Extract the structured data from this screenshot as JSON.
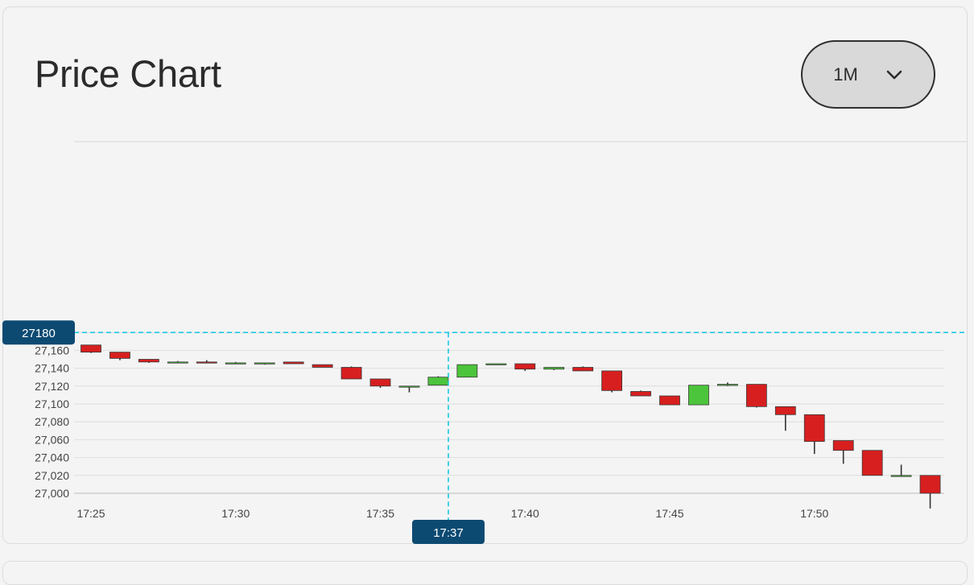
{
  "header": {
    "title": "Price Chart",
    "timeframe": "1M"
  },
  "crosshair": {
    "price_label": "27180",
    "time_label": "17:37",
    "price": 27180,
    "time": "17:37"
  },
  "colors": {
    "up": "#4cc43b",
    "down": "#d71f1f",
    "crosshair": "#1cc7e6",
    "label_bg": "#0d4a72",
    "grid": "#dddddd"
  },
  "chart_data": {
    "type": "candlestick",
    "y_ticks": [
      "27,000",
      "27,020",
      "27,040",
      "27,060",
      "27,080",
      "27,100",
      "27,120",
      "27,140",
      "27,160",
      "27,180"
    ],
    "x_ticks": [
      "17:25",
      "17:30",
      "17:35",
      "17:40",
      "17:45",
      "17:50"
    ],
    "ylim": [
      27000,
      27180
    ],
    "grid": true,
    "candles": [
      {
        "time": "17:25",
        "open": 27166,
        "high": 27166,
        "low": 27157,
        "close": 27158
      },
      {
        "time": "17:26",
        "open": 27158,
        "high": 27158,
        "low": 27149,
        "close": 27151
      },
      {
        "time": "17:27",
        "open": 27150,
        "high": 27150,
        "low": 27146,
        "close": 27147
      },
      {
        "time": "17:28",
        "open": 27147,
        "high": 27148,
        "low": 27146,
        "close": 27147
      },
      {
        "time": "17:29",
        "open": 27147,
        "high": 27149,
        "low": 27146,
        "close": 27146
      },
      {
        "time": "17:30",
        "open": 27146,
        "high": 27147,
        "low": 27146,
        "close": 27146
      },
      {
        "time": "17:31",
        "open": 27146,
        "high": 27146,
        "low": 27144,
        "close": 27146
      },
      {
        "time": "17:32",
        "open": 27147,
        "high": 27147,
        "low": 27145,
        "close": 27145
      },
      {
        "time": "17:33",
        "open": 27144,
        "high": 27144,
        "low": 27141,
        "close": 27141
      },
      {
        "time": "17:34",
        "open": 27141,
        "high": 27142,
        "low": 27128,
        "close": 27128
      },
      {
        "time": "17:35",
        "open": 27128,
        "high": 27128,
        "low": 27118,
        "close": 27120
      },
      {
        "time": "17:36",
        "open": 27120,
        "high": 27120,
        "low": 27113,
        "close": 27120
      },
      {
        "time": "17:37",
        "open": 27121,
        "high": 27131,
        "low": 27121,
        "close": 27130
      },
      {
        "time": "17:38",
        "open": 27130,
        "high": 27144,
        "low": 27130,
        "close": 27144
      },
      {
        "time": "17:39",
        "open": 27145,
        "high": 27145,
        "low": 27144,
        "close": 27145
      },
      {
        "time": "17:40",
        "open": 27145,
        "high": 27145,
        "low": 27137,
        "close": 27139
      },
      {
        "time": "17:41",
        "open": 27139,
        "high": 27141,
        "low": 27138,
        "close": 27141
      },
      {
        "time": "17:42",
        "open": 27141,
        "high": 27142,
        "low": 27137,
        "close": 27137
      },
      {
        "time": "17:43",
        "open": 27137,
        "high": 27137,
        "low": 27113,
        "close": 27115
      },
      {
        "time": "17:44",
        "open": 27114,
        "high": 27115,
        "low": 27109,
        "close": 27109
      },
      {
        "time": "17:45",
        "open": 27109,
        "high": 27109,
        "low": 27099,
        "close": 27099
      },
      {
        "time": "17:46",
        "open": 27099,
        "high": 27121,
        "low": 27099,
        "close": 27121
      },
      {
        "time": "17:47",
        "open": 27121,
        "high": 27124,
        "low": 27120,
        "close": 27122
      },
      {
        "time": "17:48",
        "open": 27122,
        "high": 27122,
        "low": 27096,
        "close": 27097
      },
      {
        "time": "17:49",
        "open": 27097,
        "high": 27097,
        "low": 27070,
        "close": 27088
      },
      {
        "time": "17:50",
        "open": 27088,
        "high": 27088,
        "low": 27044,
        "close": 27058
      },
      {
        "time": "17:51",
        "open": 27059,
        "high": 27059,
        "low": 27033,
        "close": 27048
      },
      {
        "time": "17:52",
        "open": 27048,
        "high": 27048,
        "low": 27020,
        "close": 27020
      },
      {
        "time": "17:53",
        "open": 27020,
        "high": 27032,
        "low": 27020,
        "close": 27020
      },
      {
        "time": "17:54",
        "open": 27020,
        "high": 27020,
        "low": 26983,
        "close": 27000
      }
    ]
  }
}
